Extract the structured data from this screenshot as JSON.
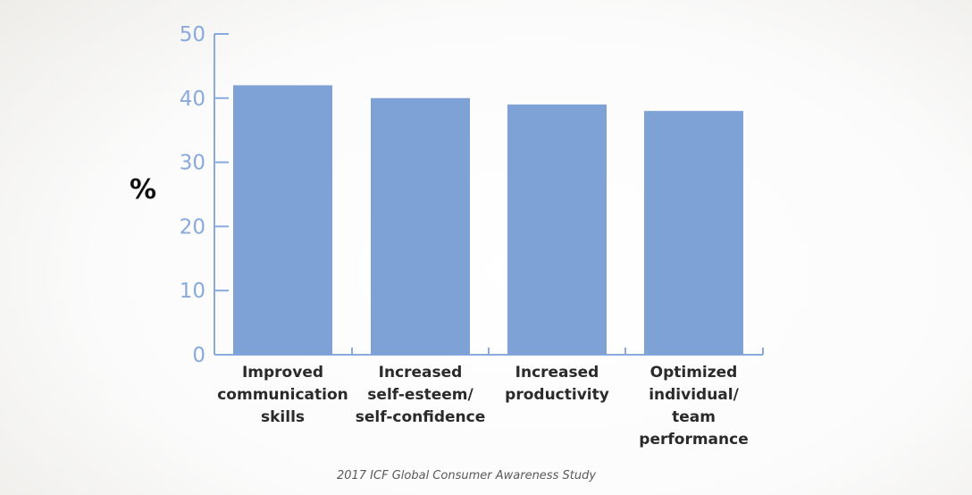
{
  "chart_data": {
    "type": "bar",
    "categories": [
      [
        "Improved",
        "communication",
        "skills"
      ],
      [
        "Increased",
        "self-esteem/",
        "self-confidence"
      ],
      [
        "Increased",
        "productivity"
      ],
      [
        "Optimized",
        "individual/",
        "team",
        "performance"
      ]
    ],
    "values": [
      42,
      40,
      39,
      38
    ],
    "ylabel": "%",
    "ylim": [
      0,
      50
    ],
    "yticks": [
      0,
      10,
      20,
      30,
      40,
      50
    ],
    "grid": false,
    "bar_color": "#7ea1d6",
    "axis_color": "#8aa9dc"
  },
  "source": "2017 ICF Global Consumer Awareness Study"
}
